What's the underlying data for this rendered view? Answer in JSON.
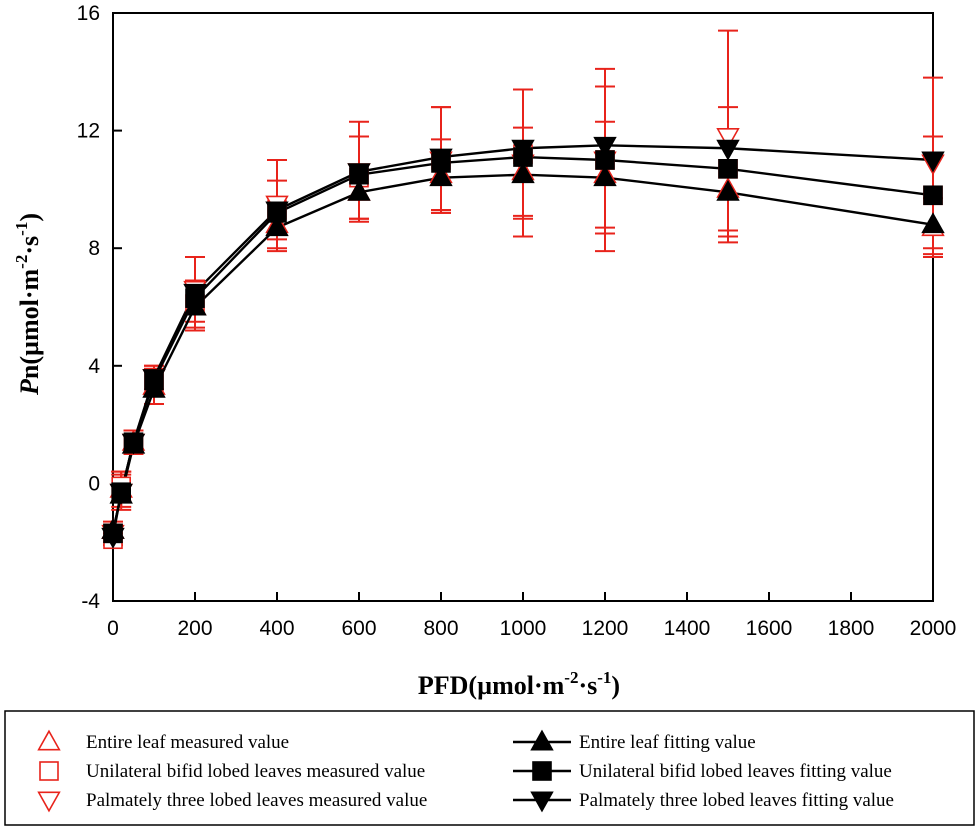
{
  "chart_data": {
    "type": "line",
    "title": "",
    "xlabel": "PFD(µmol·m⁻²·s⁻¹)",
    "ylabel": "Pn(µmol·m⁻²·s⁻¹)",
    "xlabel_parts": {
      "main": "PFD(µmol·m",
      "exp1": "-2",
      "mid": "·s",
      "exp2": "-1",
      "end": ")"
    },
    "ylabel_parts": {
      "italic": "P",
      "main": "n(µmol·m",
      "exp1": "-2",
      "mid": "·s",
      "exp2": "-1",
      "end": ")"
    },
    "xlim": [
      0,
      2000
    ],
    "ylim": [
      -4,
      16
    ],
    "x_ticks": [
      0,
      200,
      400,
      600,
      800,
      1000,
      1200,
      1400,
      1600,
      1800,
      2000
    ],
    "y_ticks": [
      -4,
      0,
      4,
      8,
      12,
      16
    ],
    "x_ticks_labeled_extra": [],
    "x_minor": [
      0,
      20,
      50,
      100
    ],
    "x": [
      0,
      20,
      50,
      100,
      200,
      400,
      600,
      800,
      1000,
      1200,
      1500,
      2000
    ],
    "colors": {
      "measured": "#e8231b",
      "fitted": "#000000"
    },
    "measured_series": [
      {
        "name": "Entire leaf measured value",
        "marker": "triangle-up",
        "values": [
          -1.6,
          -0.2,
          1.4,
          3.3,
          6.0,
          8.8,
          9.9,
          10.5,
          10.6,
          10.5,
          10.0,
          8.7
        ],
        "errors": [
          0.3,
          0.6,
          0.4,
          0.6,
          0.8,
          0.9,
          0.9,
          1.2,
          1.5,
          1.8,
          1.6,
          1.0
        ]
      },
      {
        "name": "Unilateral bifid lobed leaves measured value",
        "marker": "square",
        "values": [
          -1.9,
          -0.1,
          1.3,
          3.5,
          6.1,
          9.3,
          10.4,
          11.0,
          11.2,
          11.0,
          10.7,
          9.8
        ],
        "errors": [
          0.2,
          0.5,
          0.3,
          0.5,
          0.8,
          1.0,
          1.4,
          1.8,
          2.2,
          2.5,
          2.1,
          2.0
        ]
      },
      {
        "name": "Palmately three lobed leaves measured value",
        "marker": "triangle-down",
        "values": [
          -1.7,
          -0.3,
          1.4,
          3.6,
          6.6,
          9.5,
          10.6,
          11.0,
          10.9,
          11.0,
          11.8,
          10.9
        ],
        "errors": [
          0.3,
          0.6,
          0.4,
          0.4,
          1.1,
          1.5,
          1.7,
          1.8,
          2.5,
          3.1,
          3.6,
          2.9
        ]
      }
    ],
    "fitted_series": [
      {
        "name": "Entire leaf fitting value",
        "marker": "triangle-up",
        "values": [
          -1.6,
          -0.4,
          1.3,
          3.2,
          6.0,
          8.7,
          9.9,
          10.4,
          10.5,
          10.4,
          9.9,
          8.8
        ]
      },
      {
        "name": "Unilateral bifid lobed leaves fitting value",
        "marker": "square",
        "values": [
          -1.7,
          -0.3,
          1.4,
          3.5,
          6.3,
          9.2,
          10.5,
          10.9,
          11.1,
          11.0,
          10.7,
          9.8
        ]
      },
      {
        "name": "Palmately three lobed leaves fitting value",
        "marker": "triangle-down",
        "values": [
          -1.8,
          -0.3,
          1.4,
          3.6,
          6.5,
          9.3,
          10.6,
          11.1,
          11.4,
          11.5,
          11.4,
          11.0
        ]
      }
    ],
    "legend": {
      "placement": "bottom",
      "left": [
        "Entire leaf measured value",
        "Unilateral bifid lobed leaves measured value",
        "Palmately three lobed leaves measured value"
      ],
      "right": [
        "Entire leaf fitting value",
        "Unilateral bifid lobed leaves fitting value",
        "Palmately three lobed leaves fitting value"
      ]
    }
  }
}
